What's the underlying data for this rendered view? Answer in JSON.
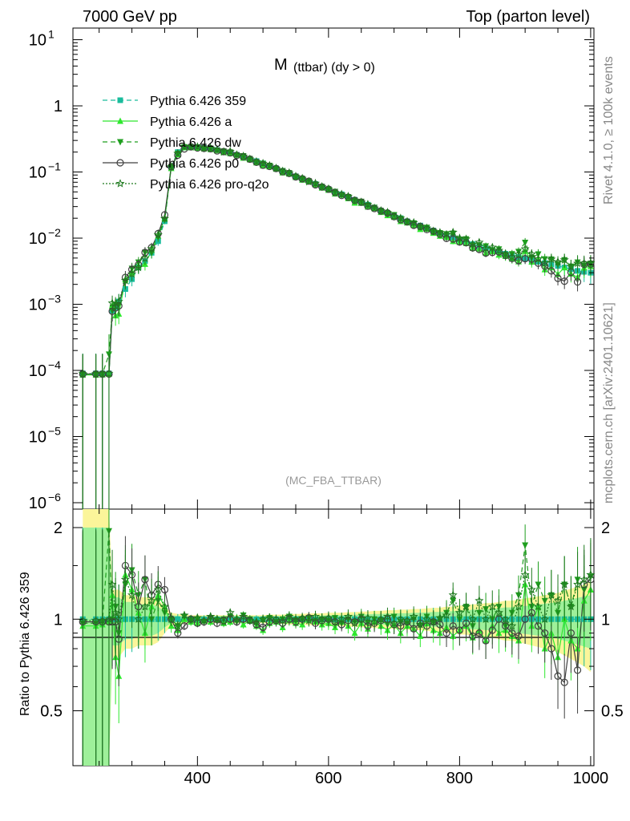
{
  "header": {
    "left": "7000 GeV pp",
    "right": "Top (parton level)"
  },
  "side_labels": {
    "rivet": "Rivet 4.1.0, ≥ 100k events",
    "mcplots": "mcplots.cern.ch [arXiv:2401.10621]"
  },
  "chart_data": {
    "type": "line",
    "title_main": "M",
    "title_sub": "(ttbar) (dy > 0)",
    "analysis_tag": "(MC_FBA_TTBAR)",
    "xlabel": "",
    "ylabel_ratio": "Ratio to Pythia 6.426 359",
    "xlim": [
      210,
      1005
    ],
    "ylim_main": [
      8e-07,
      15
    ],
    "ylim_ratio": [
      0.33,
      2.3
    ],
    "x_ticks": [
      "400",
      "600",
      "800",
      "1000"
    ],
    "y_ticks_main": [
      {
        "base": "10",
        "exp": "1",
        "value": 10
      },
      {
        "base": "1",
        "exp": "",
        "value": 1
      },
      {
        "base": "10",
        "exp": "−1",
        "value": 0.1
      },
      {
        "base": "10",
        "exp": "−2",
        "value": 0.01
      },
      {
        "base": "10",
        "exp": "−3",
        "value": 0.001
      },
      {
        "base": "10",
        "exp": "−4",
        "value": 0.0001
      },
      {
        "base": "10",
        "exp": "−5",
        "value": 1e-05
      },
      {
        "base": "10",
        "exp": "−6",
        "value": 1e-06
      }
    ],
    "y_ticks_ratio": [
      {
        "label": "0.5",
        "value": 0.5
      },
      {
        "label": "1",
        "value": 1
      },
      {
        "label": "2",
        "value": 2
      }
    ],
    "reference_series": "Pythia 6.426 359",
    "series": [
      {
        "name": "Pythia 6.426 359",
        "color": "#1abc9c",
        "marker": "square",
        "dash": "6,4"
      },
      {
        "name": "Pythia 6.426 a",
        "color": "#2ee82e",
        "marker": "triangle-up",
        "dash": ""
      },
      {
        "name": "Pythia 6.426 dw",
        "color": "#1e9e1e",
        "marker": "triangle-down",
        "dash": "6,4"
      },
      {
        "name": "Pythia 6.426 p0",
        "color": "#404040",
        "marker": "circle-open",
        "dash": ""
      },
      {
        "name": "Pythia 6.426 pro-q2o",
        "color": "#1f7a1f",
        "marker": "star-open",
        "dash": "2,2"
      }
    ],
    "x": [
      225,
      245,
      255,
      265,
      270,
      275,
      280,
      290,
      300,
      310,
      320,
      330,
      340,
      350,
      360,
      370,
      380,
      390,
      400,
      410,
      420,
      430,
      440,
      450,
      460,
      470,
      480,
      490,
      500,
      510,
      520,
      530,
      540,
      550,
      560,
      570,
      580,
      590,
      600,
      610,
      620,
      630,
      640,
      650,
      660,
      670,
      680,
      690,
      700,
      710,
      720,
      730,
      740,
      750,
      760,
      770,
      780,
      790,
      800,
      810,
      820,
      830,
      840,
      850,
      860,
      870,
      880,
      890,
      900,
      910,
      920,
      930,
      940,
      950,
      960,
      970,
      980,
      990,
      1000
    ],
    "reference_values": [
      9e-05,
      9e-05,
      9e-05,
      9e-05,
      0.0008,
      0.0009,
      0.0011,
      0.0017,
      0.0024,
      0.0036,
      0.0045,
      0.006,
      0.009,
      0.018,
      0.12,
      0.2,
      0.235,
      0.24,
      0.238,
      0.232,
      0.225,
      0.215,
      0.205,
      0.195,
      0.182,
      0.17,
      0.158,
      0.146,
      0.135,
      0.124,
      0.114,
      0.104,
      0.095,
      0.086,
      0.079,
      0.072,
      0.066,
      0.06,
      0.055,
      0.05,
      0.046,
      0.042,
      0.038,
      0.035,
      0.032,
      0.029,
      0.026,
      0.024,
      0.022,
      0.02,
      0.018,
      0.0168,
      0.0155,
      0.0142,
      0.013,
      0.012,
      0.011,
      0.0102,
      0.0095,
      0.0088,
      0.0081,
      0.0075,
      0.007,
      0.0066,
      0.0062,
      0.0058,
      0.0055,
      0.0052,
      0.0049,
      0.0046,
      0.0044,
      0.0042,
      0.004,
      0.0038,
      0.0036,
      0.0034,
      0.0032,
      0.0031,
      0.003
    ],
    "ratios": [
      [
        1,
        1,
        1,
        1,
        1,
        1,
        1,
        1,
        1,
        1,
        1,
        1,
        1,
        1,
        1,
        1,
        1,
        1,
        1,
        1,
        1,
        1,
        1,
        1,
        1,
        1,
        1,
        1,
        1,
        1,
        1,
        1,
        1,
        1,
        1,
        1,
        1,
        1,
        1,
        1,
        1,
        1,
        1,
        1,
        1,
        1,
        1,
        1,
        1,
        1,
        1,
        1,
        1,
        1,
        1,
        1,
        1,
        1,
        1,
        1,
        1,
        1,
        1,
        1,
        1,
        1,
        1,
        1,
        1,
        1,
        1,
        1,
        1,
        1,
        1,
        1,
        1,
        1,
        1
      ],
      [
        0.95,
        0.95,
        0.96,
        0.98,
        1.2,
        0.75,
        0.65,
        1.4,
        1.25,
        1.05,
        0.9,
        1.1,
        1.2,
        1.1,
        0.95,
        0.92,
        1.0,
        0.98,
        0.97,
        0.99,
        0.98,
        1.0,
        0.97,
        0.98,
        1.01,
        0.96,
        0.99,
        0.95,
        0.92,
        0.97,
        0.98,
        0.94,
        0.99,
        0.97,
        0.96,
        1.0,
        0.98,
        0.96,
        0.97,
        0.94,
        0.98,
        0.95,
        0.9,
        0.97,
        0.93,
        0.98,
        0.95,
        0.92,
        0.96,
        0.9,
        0.95,
        0.93,
        0.88,
        0.97,
        0.92,
        0.9,
        0.94,
        0.88,
        0.92,
        0.95,
        0.87,
        0.92,
        0.85,
        0.95,
        0.9,
        0.92,
        0.88,
        0.85,
        1.3,
        0.95,
        1.1,
        0.8,
        0.9,
        0.75,
        1.0,
        0.85,
        0.8,
        1.15,
        1.25
      ],
      [
        0.97,
        0.97,
        0.98,
        1.95,
        1.0,
        1.1,
        0.9,
        1.3,
        1.45,
        1.2,
        1.35,
        1.0,
        1.15,
        1.05,
        1.0,
        0.95,
        1.02,
        0.99,
        1.0,
        0.98,
        1.01,
        0.99,
        1.0,
        1.02,
        0.98,
        1.03,
        1.0,
        0.97,
        0.99,
        1.01,
        0.98,
        1.0,
        1.02,
        0.99,
        1.0,
        1.01,
        0.98,
        1.0,
        0.99,
        1.01,
        0.97,
        1.0,
        0.98,
        1.02,
        0.97,
        1.0,
        0.99,
        0.96,
        1.02,
        0.98,
        0.97,
        1.0,
        0.95,
        1.02,
        0.98,
        1.0,
        1.05,
        1.15,
        1.0,
        1.1,
        0.95,
        1.05,
        1.08,
        1.0,
        1.1,
        0.95,
        1.05,
        1.2,
        1.75,
        1.1,
        1.3,
        1.15,
        1.2,
        1.05,
        1.3,
        1.1,
        1.35,
        1.25,
        1.38
      ],
      [
        0.98,
        0.98,
        0.98,
        0.98,
        0.98,
        0.98,
        0.86,
        1.5,
        1.4,
        1.1,
        1.35,
        1.2,
        1.3,
        1.25,
        1.0,
        0.9,
        0.95,
        1.0,
        0.97,
        0.98,
        1.0,
        0.97,
        0.99,
        1.0,
        0.98,
        1.0,
        0.99,
        0.96,
        0.94,
        0.98,
        0.99,
        0.97,
        1.0,
        0.98,
        1.0,
        1.01,
        0.97,
        0.99,
        1.0,
        0.98,
        0.96,
        0.99,
        0.98,
        1.0,
        0.95,
        0.97,
        0.99,
        1.0,
        0.96,
        0.95,
        0.98,
        0.93,
        0.97,
        0.95,
        0.98,
        0.96,
        0.9,
        0.95,
        0.92,
        0.97,
        0.88,
        0.9,
        0.85,
        0.92,
        1.0,
        0.95,
        0.9,
        0.88,
        1.0,
        1.05,
        0.95,
        0.9,
        0.8,
        0.65,
        0.62,
        0.9,
        0.68,
        1.3,
        1.35
      ],
      [
        0.99,
        0.99,
        0.99,
        1.0,
        1.3,
        1.05,
        1.0,
        1.35,
        1.2,
        1.0,
        1.1,
        1.15,
        1.25,
        1.1,
        1.0,
        0.95,
        1.03,
        1.0,
        1.01,
        0.99,
        1.02,
        1.0,
        0.98,
        1.05,
        1.0,
        1.02,
        0.99,
        0.98,
        1.0,
        1.01,
        1.0,
        0.99,
        1.02,
        1.0,
        1.01,
        0.99,
        1.02,
        1.0,
        1.01,
        0.98,
        1.0,
        1.02,
        0.97,
        1.0,
        1.01,
        0.98,
        1.0,
        1.02,
        0.97,
        1.0,
        0.99,
        1.02,
        0.96,
        1.0,
        0.98,
        1.01,
        1.03,
        1.2,
        1.05,
        1.1,
        1.0,
        1.15,
        1.0,
        1.1,
        1.05,
        1.0,
        0.95,
        1.1,
        1.4,
        1.25,
        1.1,
        1.0,
        1.2,
        1.15,
        1.3,
        1.1,
        1.3,
        1.35,
        1.4
      ]
    ],
    "band_yellow_half": [
      1.3,
      1.3,
      1.3,
      1.3,
      0.25,
      0.25,
      0.25,
      0.2,
      0.2,
      0.18,
      0.18,
      0.18,
      0.16,
      0.1,
      0.05,
      0.04,
      0.035,
      0.03,
      0.03,
      0.03,
      0.03,
      0.03,
      0.03,
      0.03,
      0.03,
      0.03,
      0.03,
      0.03,
      0.03,
      0.035,
      0.035,
      0.035,
      0.04,
      0.04,
      0.04,
      0.045,
      0.045,
      0.045,
      0.05,
      0.05,
      0.05,
      0.055,
      0.055,
      0.06,
      0.06,
      0.065,
      0.065,
      0.07,
      0.07,
      0.075,
      0.075,
      0.08,
      0.08,
      0.085,
      0.09,
      0.09,
      0.1,
      0.1,
      0.11,
      0.11,
      0.12,
      0.12,
      0.13,
      0.13,
      0.14,
      0.15,
      0.15,
      0.16,
      0.17,
      0.18,
      0.19,
      0.2,
      0.21,
      0.22,
      0.24,
      0.26,
      0.28,
      0.3,
      0.33
    ],
    "band_green_half": [
      1.0,
      1.0,
      1.0,
      1.0,
      0.18,
      0.18,
      0.18,
      0.14,
      0.14,
      0.12,
      0.12,
      0.12,
      0.1,
      0.06,
      0.03,
      0.025,
      0.02,
      0.02,
      0.02,
      0.02,
      0.02,
      0.02,
      0.02,
      0.02,
      0.02,
      0.02,
      0.02,
      0.02,
      0.02,
      0.022,
      0.022,
      0.022,
      0.025,
      0.025,
      0.025,
      0.028,
      0.028,
      0.028,
      0.03,
      0.03,
      0.03,
      0.034,
      0.034,
      0.037,
      0.037,
      0.04,
      0.04,
      0.043,
      0.043,
      0.046,
      0.046,
      0.05,
      0.05,
      0.053,
      0.056,
      0.056,
      0.062,
      0.062,
      0.068,
      0.068,
      0.075,
      0.075,
      0.08,
      0.08,
      0.087,
      0.093,
      0.093,
      0.1,
      0.106,
      0.112,
      0.118,
      0.125,
      0.131,
      0.137,
      0.15,
      0.162,
      0.175,
      0.187,
      0.2
    ],
    "error_frac": [
      1.0,
      1.0,
      1.0,
      1.0,
      0.3,
      0.3,
      0.3,
      0.25,
      0.22,
      0.2,
      0.2,
      0.18,
      0.15,
      0.1,
      0.05,
      0.04,
      0.03,
      0.03,
      0.03,
      0.03,
      0.03,
      0.03,
      0.03,
      0.03,
      0.03,
      0.03,
      0.03,
      0.03,
      0.035,
      0.035,
      0.035,
      0.035,
      0.04,
      0.04,
      0.04,
      0.045,
      0.045,
      0.045,
      0.05,
      0.05,
      0.05,
      0.055,
      0.055,
      0.06,
      0.06,
      0.065,
      0.065,
      0.07,
      0.07,
      0.075,
      0.075,
      0.08,
      0.08,
      0.085,
      0.09,
      0.09,
      0.1,
      0.1,
      0.11,
      0.11,
      0.12,
      0.12,
      0.13,
      0.13,
      0.14,
      0.15,
      0.15,
      0.16,
      0.17,
      0.18,
      0.19,
      0.2,
      0.21,
      0.22,
      0.24,
      0.26,
      0.28,
      0.3,
      0.32
    ]
  }
}
